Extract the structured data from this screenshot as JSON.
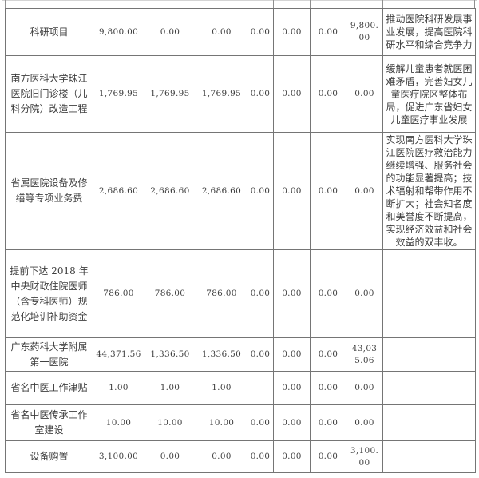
{
  "page": {
    "background_color": "#ffffff",
    "border_color": "#757575",
    "text_color": "#3f3f3f"
  },
  "table": {
    "rows": [
      {
        "project": "科研项目",
        "amounts": [
          "9,800.00",
          "0.00",
          "0.00",
          "0.00",
          "0.00",
          "0.00",
          "9,800.00"
        ],
        "note": "推动医院科研发展事业发展，提高医院科研水平和综合竞争力"
      },
      {
        "project": "南方医科大学珠江医院旧门诊楼（儿科分院）改造工程",
        "amounts": [
          "1,769.95",
          "1,769.95",
          "1,769.95",
          "0.00",
          "0.00",
          "0.00",
          "0.00"
        ],
        "note": "缓解儿童患者就医困难矛盾，完善妇女儿童医疗院区整体布局，促进广东省妇女儿童医疗事业发展"
      },
      {
        "project": "省属医院设备及修缮等专项业务费",
        "amounts": [
          "2,686.60",
          "2,686.60",
          "2,686.60",
          "0.00",
          "0.00",
          "0.00",
          "0.00"
        ],
        "note": "实现南方医科大学珠江医院医疗救治能力继续增强、服务社会的功能显著提高；技术辐射和帮带作用不断扩大；社会知名度和美誉度不断提高，实现经济效益和社会效益的双丰收。"
      },
      {
        "project": "提前下达 2018 年中央财政住院医师（含专科医师）规范化培训补助资金",
        "amounts": [
          "786.00",
          "786.00",
          "786.00",
          "0.00",
          "0.00",
          "0.00",
          "0.00"
        ],
        "note": ""
      },
      {
        "project": "广东药科大学附属第一医院",
        "amounts": [
          "44,371.56",
          "1,336.50",
          "1,336.50",
          "0.00",
          "0.00",
          "0.00",
          "43,035.06"
        ],
        "note": ""
      },
      {
        "project": "省名中医工作津贴",
        "amounts": [
          "1.00",
          "1.00",
          "1.00",
          "",
          "0.00",
          "0.00",
          "0.00"
        ],
        "note": ""
      },
      {
        "project": "省名中医传承工作室建设",
        "amounts": [
          "10.00",
          "10.00",
          "10.00",
          "0.00",
          "0.00",
          "0.00",
          "0.00"
        ],
        "note": ""
      },
      {
        "project": "设备购置",
        "amounts": [
          "3,100.00",
          "0.00",
          "0.00",
          "0.00",
          "0.00",
          "0.00",
          "3,100.00"
        ],
        "note": ""
      }
    ]
  }
}
